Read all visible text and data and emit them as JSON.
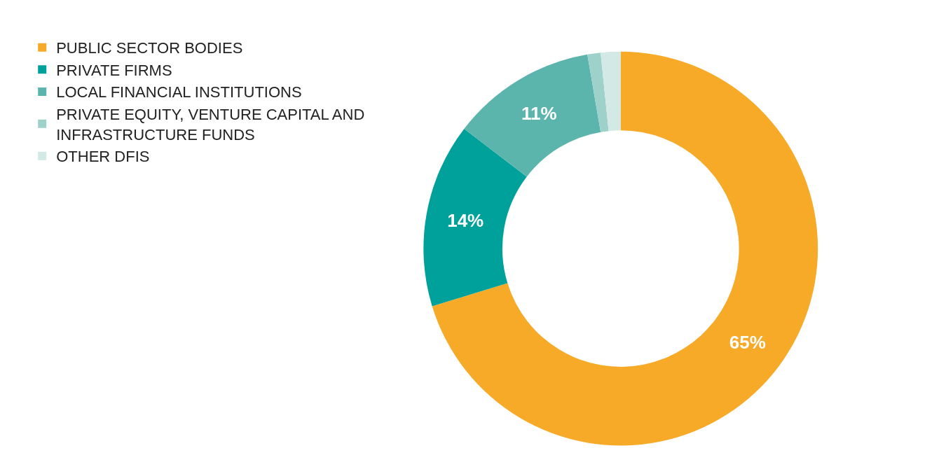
{
  "chart_data": {
    "type": "donut",
    "categories": [
      "PUBLIC SECTOR BODIES",
      "PRIVATE FIRMS",
      "LOCAL FINANCIAL INSTITUTIONS",
      "PRIVATE EQUITY, VENTURE CAPITAL AND INFRASTRUCTURE FUNDS",
      "OTHER DFIS"
    ],
    "values": [
      65,
      14,
      11,
      1,
      1.5
    ],
    "value_labels": [
      "65%",
      "14%",
      "11%",
      null,
      null
    ],
    "colors": [
      "#f7a928",
      "#00a19a",
      "#5bb5ad",
      "#9ed1ca",
      "#d2e9e5"
    ],
    "legend": "top left"
  }
}
